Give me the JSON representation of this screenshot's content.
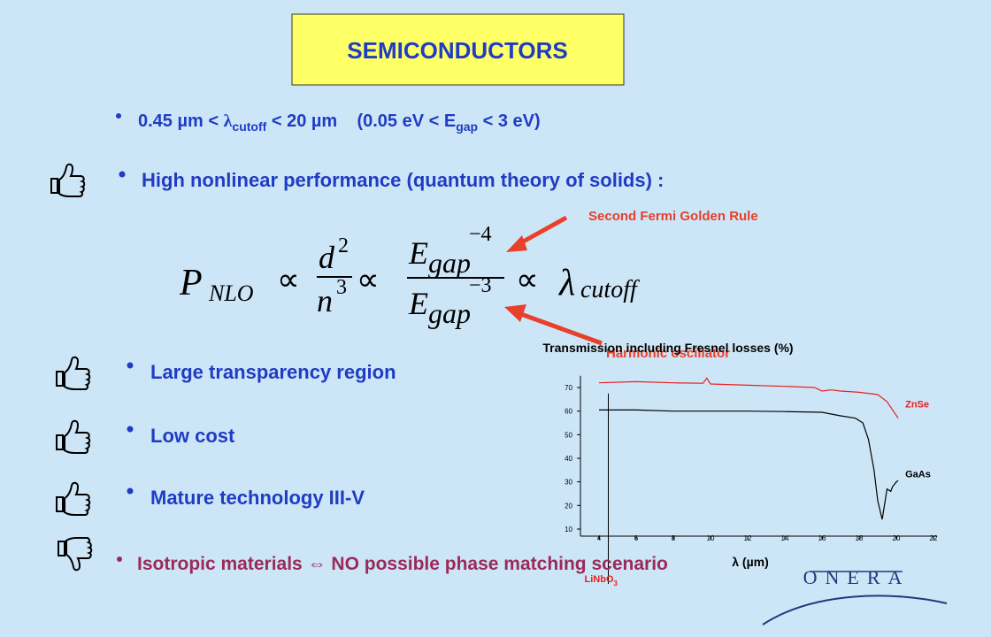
{
  "title": "SEMICONDUCTORS",
  "bullets": [
    [
      "0.45 µm < ",
      "λ",
      "cutoff",
      " < 20 µm    (0.05 eV < E",
      "gap",
      " < 3 eV)"
    ],
    [
      "High nonlinear performance (quantum theory of solids) :"
    ],
    [
      "Large transparency region"
    ],
    [
      "Low cost"
    ],
    [
      "Mature technology III-V"
    ],
    [
      "Isotropic materials ",
      "⇔",
      " NO possible phase matching scenario"
    ]
  ],
  "formula": {
    "p": "P",
    "nlo": "NLO",
    "prop": "∝",
    "d": "d",
    "d_exp": "2",
    "n": "n",
    "n_exp": "3",
    "e": "E",
    "gap": "gap",
    "exp_num": "−4",
    "exp_den": "−3",
    "lambda": "λ",
    "cutoff": "cutoff"
  },
  "notes": [
    "Second Fermi Golden Rule",
    "Harmonic oscillator"
  ],
  "logo": "ONERA",
  "chart_data": {
    "type": "line",
    "title": "Transmission including Fresnel losses (%)",
    "xlabel": "λ (µm)",
    "xlim": [
      3,
      22.2
    ],
    "ylim": [
      7,
      75
    ],
    "xticks": [
      4,
      6,
      8,
      10,
      12,
      14,
      16,
      18,
      20,
      22
    ],
    "yticks": [
      10,
      20,
      30,
      40,
      50,
      60,
      70
    ],
    "grid": false,
    "series": [
      {
        "name": "ZnSe",
        "color": "#e8201c",
        "x": [
          4,
          6,
          8,
          9.6,
          9.8,
          10,
          12,
          14,
          15.6,
          16,
          16.5,
          17,
          18,
          19,
          19.5,
          20.1
        ],
        "values": [
          72,
          72.5,
          72,
          71.8,
          74,
          71.5,
          71,
          70.5,
          70,
          68.5,
          69,
          68.5,
          68,
          67,
          64,
          57
        ]
      },
      {
        "name": "GaAs",
        "color": "#000000",
        "x": [
          4,
          6,
          8,
          10,
          12,
          14,
          16,
          17,
          17.8,
          18.2,
          18.5,
          18.8,
          19,
          19.24,
          19.5,
          19.7,
          19.8,
          20,
          20.1
        ],
        "values": [
          60.5,
          60.5,
          60,
          60,
          60,
          59.8,
          59.5,
          58,
          57,
          55,
          48,
          35,
          22,
          14.1,
          27,
          26,
          28,
          30,
          30.5
        ]
      }
    ],
    "annotations": [
      {
        "text": "LiNbO",
        "sub": "3",
        "x": 4.5
      }
    ]
  }
}
